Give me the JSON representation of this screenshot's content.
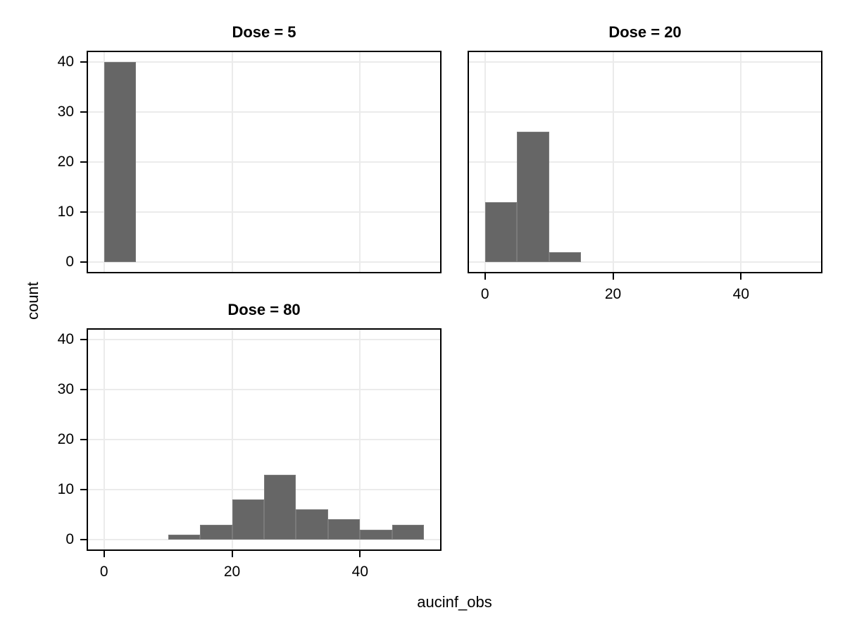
{
  "figure": {
    "background": "#ffffff",
    "text_color": "#000000",
    "panel_border_color": "#000000",
    "grid_color": "#ebebeb",
    "bar_fill": "#666666",
    "bar_edge": "#7a7a7a"
  },
  "chart_data": {
    "type": "bar",
    "subtype": "faceted_histogram",
    "title": "",
    "xlabel": "aucinf_obs",
    "ylabel": "count",
    "facet_variable": "Dose",
    "legend": "none",
    "grid": "major-only",
    "bin_width": 5,
    "x_breaks": [
      0,
      20,
      40
    ],
    "y_breaks": [
      0,
      10,
      20,
      30,
      40
    ],
    "xlim": [
      -2.5,
      52.5
    ],
    "ylim": [
      -2,
      42
    ],
    "facets": [
      {
        "title": "Dose = 5",
        "dose": 5,
        "bins": [
          {
            "x0": 0,
            "x1": 5,
            "count": 40
          }
        ]
      },
      {
        "title": "Dose = 20",
        "dose": 20,
        "bins": [
          {
            "x0": 0,
            "x1": 5,
            "count": 12
          },
          {
            "x0": 5,
            "x1": 10,
            "count": 26
          },
          {
            "x0": 10,
            "x1": 15,
            "count": 2
          }
        ]
      },
      {
        "title": "Dose = 80",
        "dose": 80,
        "bins": [
          {
            "x0": 10,
            "x1": 15,
            "count": 1
          },
          {
            "x0": 15,
            "x1": 20,
            "count": 3
          },
          {
            "x0": 20,
            "x1": 25,
            "count": 8
          },
          {
            "x0": 25,
            "x1": 30,
            "count": 13
          },
          {
            "x0": 30,
            "x1": 35,
            "count": 6
          },
          {
            "x0": 35,
            "x1": 40,
            "count": 4
          },
          {
            "x0": 40,
            "x1": 45,
            "count": 2
          },
          {
            "x0": 45,
            "x1": 50,
            "count": 3
          }
        ]
      }
    ]
  }
}
